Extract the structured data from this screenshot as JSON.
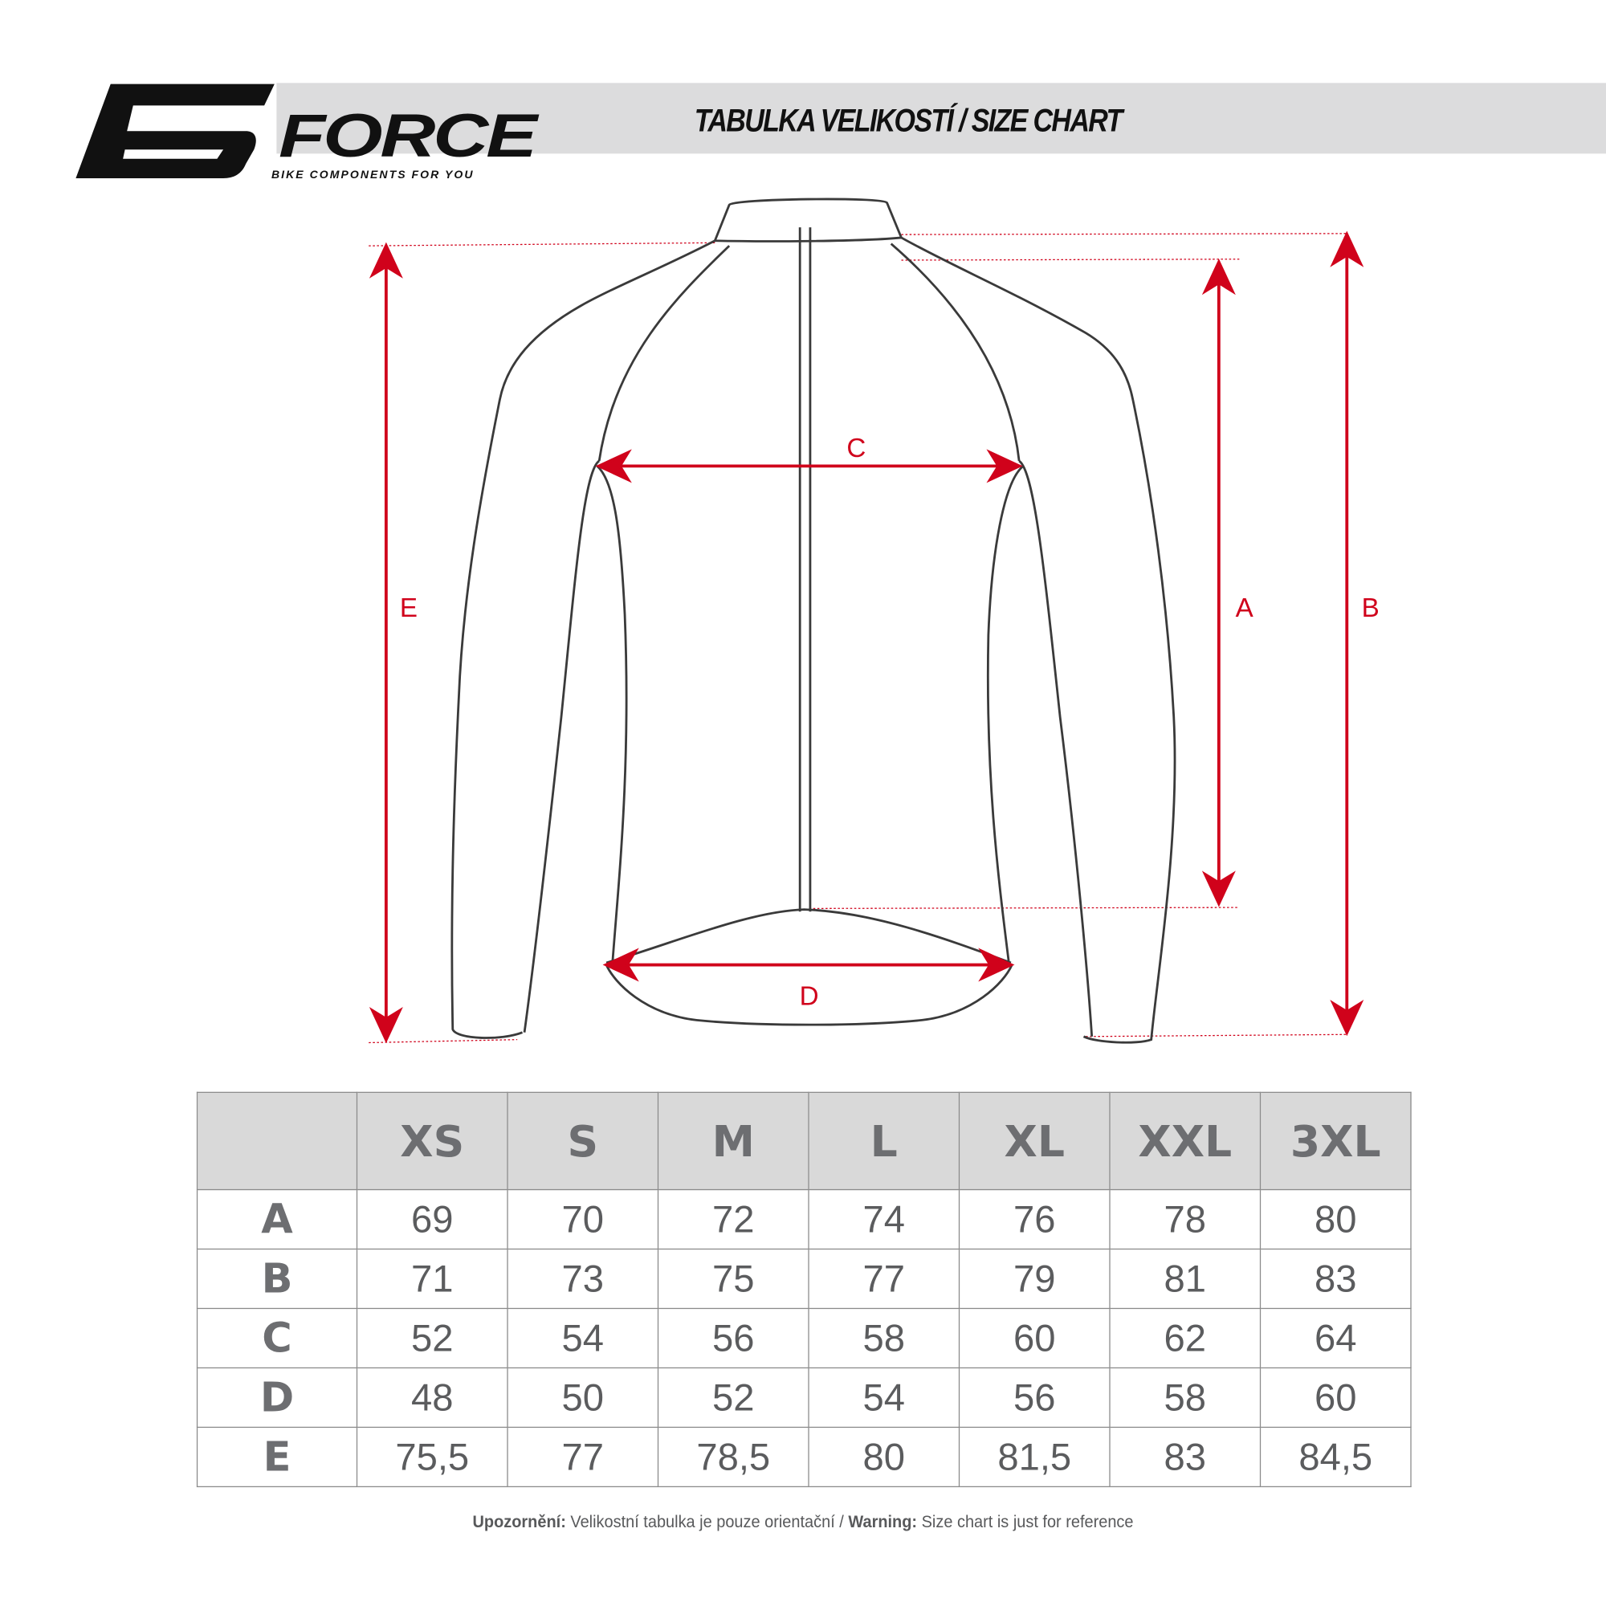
{
  "header": {
    "brand": "FORCE",
    "tagline": "BIKE COMPONENTS FOR YOU",
    "title": "TABULKA VELIKOSTÍ / SIZE CHART"
  },
  "diagram": {
    "labels": {
      "A": "A",
      "B": "B",
      "C": "C",
      "D": "D",
      "E": "E"
    },
    "arrow_color": "#d0021b",
    "outline_color": "#3a3a3a"
  },
  "table": {
    "columns": [
      "",
      "XS",
      "S",
      "M",
      "L",
      "XL",
      "XXL",
      "3XL"
    ],
    "rows": [
      {
        "label": "A",
        "values": [
          "69",
          "70",
          "72",
          "74",
          "76",
          "78",
          "80"
        ]
      },
      {
        "label": "B",
        "values": [
          "71",
          "73",
          "75",
          "77",
          "79",
          "81",
          "83"
        ]
      },
      {
        "label": "C",
        "values": [
          "52",
          "54",
          "56",
          "58",
          "60",
          "62",
          "64"
        ]
      },
      {
        "label": "D",
        "values": [
          "48",
          "50",
          "52",
          "54",
          "56",
          "58",
          "60"
        ]
      },
      {
        "label": "E",
        "values": [
          "75,5",
          "77",
          "78,5",
          "80",
          "81,5",
          "83",
          "84,5"
        ]
      }
    ]
  },
  "footer": {
    "warning_cz_label": "Upozornění:",
    "warning_cz_text": " Velikostní tabulka je pouze orientační / ",
    "warning_en_label": "Warning:",
    "warning_en_text": " Size chart is just for reference"
  }
}
